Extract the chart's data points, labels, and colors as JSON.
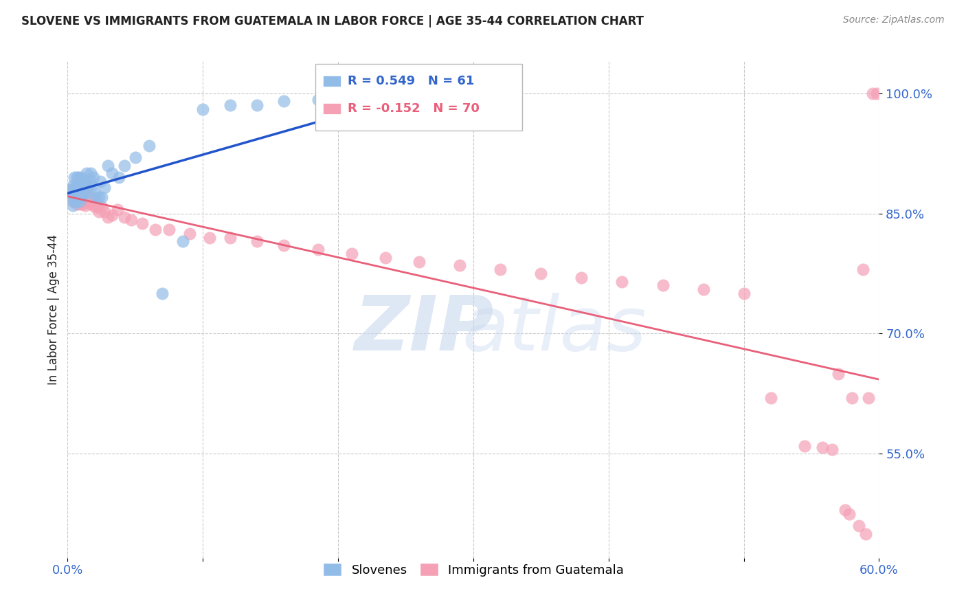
{
  "title": "SLOVENE VS IMMIGRANTS FROM GUATEMALA IN LABOR FORCE | AGE 35-44 CORRELATION CHART",
  "source": "Source: ZipAtlas.com",
  "ylabel": "In Labor Force | Age 35-44",
  "xlim": [
    0.0,
    0.6
  ],
  "ylim": [
    0.42,
    1.04
  ],
  "yticks": [
    0.55,
    0.7,
    0.85,
    1.0
  ],
  "ytick_labels": [
    "55.0%",
    "70.0%",
    "85.0%",
    "100.0%"
  ],
  "xtick_positions": [
    0.0,
    0.1,
    0.2,
    0.3,
    0.4,
    0.5,
    0.6
  ],
  "legend_r1": "0.549",
  "legend_n1": "61",
  "legend_r2": "-0.152",
  "legend_n2": "70",
  "slovene_color": "#92bce8",
  "guatemala_color": "#f5a0b5",
  "line_blue": "#2255cc",
  "line_pink": "#e8607a",
  "background_color": "#ffffff",
  "grid_color": "#bbbbbb",
  "title_color": "#222222",
  "source_color": "#888888",
  "axis_label_color": "#222222",
  "tick_color": "#3366cc",
  "slovene_x": [
    0.002,
    0.003,
    0.003,
    0.004,
    0.004,
    0.004,
    0.005,
    0.005,
    0.005,
    0.006,
    0.006,
    0.006,
    0.007,
    0.007,
    0.007,
    0.008,
    0.008,
    0.008,
    0.009,
    0.009,
    0.009,
    0.01,
    0.01,
    0.01,
    0.011,
    0.011,
    0.012,
    0.012,
    0.013,
    0.014,
    0.014,
    0.015,
    0.016,
    0.017,
    0.018,
    0.019,
    0.02,
    0.021,
    0.023,
    0.024,
    0.025,
    0.027,
    0.03,
    0.033,
    0.038,
    0.042,
    0.05,
    0.06,
    0.07,
    0.085,
    0.1,
    0.12,
    0.14,
    0.16,
    0.185,
    0.21,
    0.24,
    0.265,
    0.285,
    0.295,
    0.3
  ],
  "slovene_y": [
    0.875,
    0.88,
    0.87,
    0.885,
    0.875,
    0.86,
    0.895,
    0.875,
    0.865,
    0.885,
    0.875,
    0.865,
    0.895,
    0.88,
    0.875,
    0.895,
    0.88,
    0.87,
    0.885,
    0.875,
    0.865,
    0.895,
    0.882,
    0.87,
    0.885,
    0.872,
    0.892,
    0.875,
    0.885,
    0.875,
    0.9,
    0.885,
    0.893,
    0.9,
    0.885,
    0.895,
    0.875,
    0.87,
    0.87,
    0.89,
    0.87,
    0.882,
    0.91,
    0.9,
    0.895,
    0.91,
    0.92,
    0.935,
    0.75,
    0.815,
    0.98,
    0.985,
    0.985,
    0.99,
    0.992,
    0.995,
    0.995,
    0.997,
    0.997,
    0.998,
    0.999
  ],
  "guatemala_x": [
    0.002,
    0.003,
    0.004,
    0.005,
    0.005,
    0.006,
    0.006,
    0.007,
    0.007,
    0.008,
    0.008,
    0.009,
    0.01,
    0.01,
    0.011,
    0.011,
    0.012,
    0.013,
    0.013,
    0.014,
    0.015,
    0.016,
    0.017,
    0.018,
    0.019,
    0.02,
    0.021,
    0.022,
    0.023,
    0.025,
    0.027,
    0.03,
    0.033,
    0.037,
    0.042,
    0.047,
    0.055,
    0.065,
    0.075,
    0.09,
    0.105,
    0.12,
    0.14,
    0.16,
    0.185,
    0.21,
    0.235,
    0.26,
    0.29,
    0.32,
    0.35,
    0.38,
    0.41,
    0.44,
    0.47,
    0.5,
    0.52,
    0.545,
    0.558,
    0.565,
    0.57,
    0.575,
    0.578,
    0.58,
    0.585,
    0.588,
    0.59,
    0.592,
    0.595,
    0.598
  ],
  "guatemala_y": [
    0.88,
    0.875,
    0.865,
    0.88,
    0.87,
    0.875,
    0.865,
    0.872,
    0.862,
    0.878,
    0.868,
    0.862,
    0.878,
    0.868,
    0.872,
    0.862,
    0.875,
    0.87,
    0.86,
    0.872,
    0.87,
    0.865,
    0.862,
    0.87,
    0.862,
    0.858,
    0.865,
    0.858,
    0.852,
    0.858,
    0.852,
    0.845,
    0.848,
    0.855,
    0.845,
    0.842,
    0.838,
    0.83,
    0.83,
    0.825,
    0.82,
    0.82,
    0.815,
    0.81,
    0.805,
    0.8,
    0.795,
    0.79,
    0.785,
    0.78,
    0.775,
    0.77,
    0.765,
    0.76,
    0.755,
    0.75,
    0.62,
    0.56,
    0.558,
    0.555,
    0.65,
    0.48,
    0.475,
    0.62,
    0.46,
    0.78,
    0.45,
    0.62,
    1.0,
    1.0
  ]
}
